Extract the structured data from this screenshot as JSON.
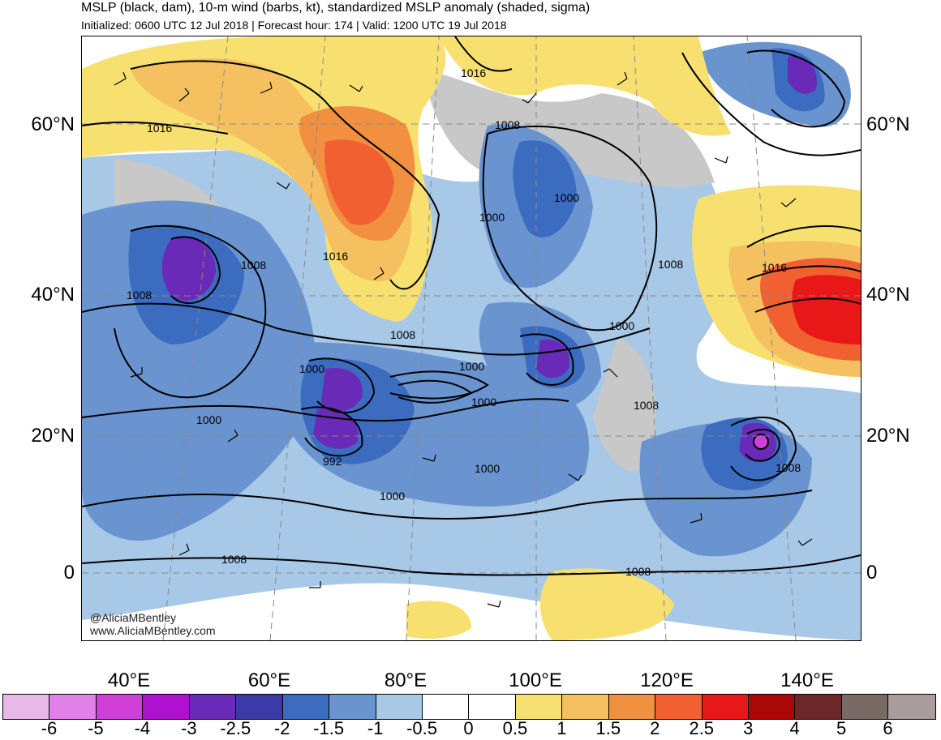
{
  "title": {
    "line1": "MSLP (black, dam), 10-m wind (barbs, kt), standardized MSLP anomaly (shaded, sigma)",
    "line2": "Initialized: 0600 UTC 12 Jul 2018 | Forecast hour: 174 | Valid: 1200 UTC 19 Jul 2018"
  },
  "lat_labels": [
    "60°N",
    "40°N",
    "20°N",
    "0"
  ],
  "lon_labels": [
    "40°E",
    "60°E",
    "80°E",
    "100°E",
    "120°E",
    "140°E"
  ],
  "isobar_labels": [
    "1016",
    "1016",
    "1016",
    "1016",
    "1008",
    "1008",
    "1008",
    "1008",
    "1008",
    "1008",
    "1008",
    "1008",
    "1008",
    "1000",
    "1000",
    "1000",
    "1000",
    "1000",
    "1000",
    "1000",
    "1000",
    "1000",
    "992"
  ],
  "credit": {
    "handle": "@AliciaMBentley",
    "site": "www.AliciaMBentley.com"
  },
  "colorbar": {
    "labels": [
      "-6",
      "-5",
      "-4",
      "-3",
      "-2.5",
      "-2",
      "-1.5",
      "-1",
      "-0.5",
      "0",
      "0.5",
      "1",
      "1.5",
      "2",
      "2.5",
      "3",
      "4",
      "5",
      "6"
    ],
    "colors": [
      "#e8b8e8",
      "#e080e8",
      "#d040d8",
      "#b010d0",
      "#6a2ab8",
      "#3a3aa8",
      "#3c6cc0",
      "#6a94d0",
      "#a8c8e8",
      "#ffffff",
      "#ffffff",
      "#f8e070",
      "#f4c060",
      "#f09040",
      "#f06030",
      "#e81818",
      "#a80808",
      "#6c2828",
      "#7a6a66",
      "#a89c9c"
    ]
  }
}
